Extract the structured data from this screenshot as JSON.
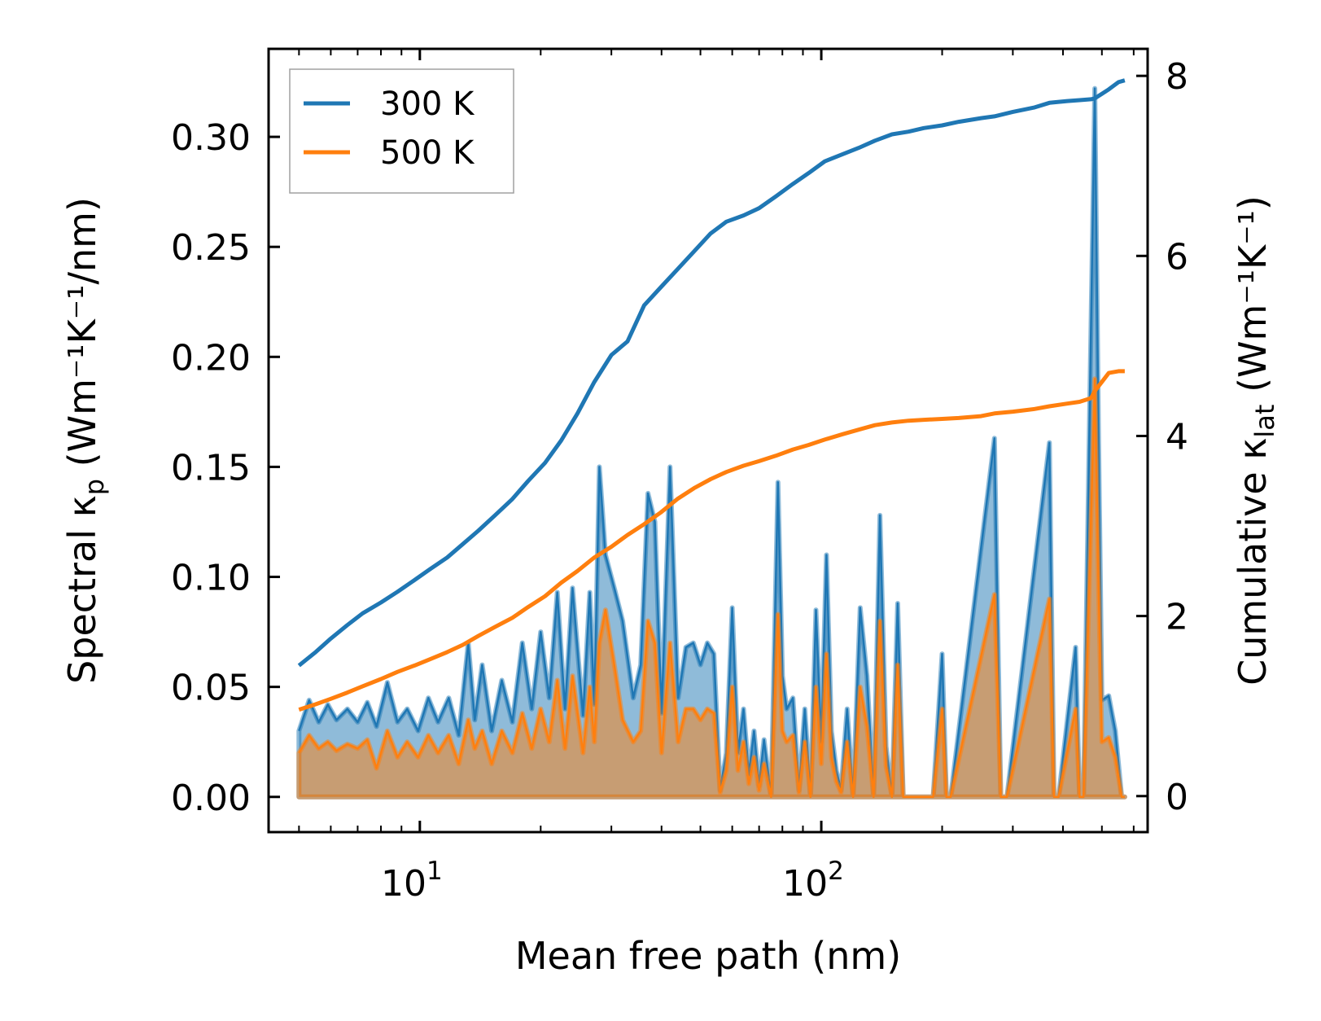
{
  "chart_data": {
    "type": "line",
    "xlabel": "Mean free path (nm)",
    "ylabel_left": "Spectral κ",
    "ylabel_left_sub": "p",
    "ylabel_left_units": " (Wm⁻¹K⁻¹/nm)",
    "ylabel_right": "Cumulative κ",
    "ylabel_right_sub": "lat",
    "ylabel_right_units": " (Wm⁻¹K⁻¹)",
    "xscale": "log",
    "xlim": [
      4.2,
      650
    ],
    "ylim_left": [
      -0.016,
      0.34
    ],
    "ylim_right": [
      -0.4,
      8.3
    ],
    "x_ticks": [
      {
        "base": "10",
        "exp": "1",
        "value": 10
      },
      {
        "base": "10",
        "exp": "2",
        "value": 100
      }
    ],
    "y_left_ticks": [
      "0.00",
      "0.05",
      "0.10",
      "0.15",
      "0.20",
      "0.25",
      "0.30"
    ],
    "y_right_ticks": [
      "0",
      "2",
      "4",
      "6",
      "8"
    ],
    "colors": {
      "s300": "#1f77b4",
      "s500": "#ff7f0e"
    },
    "legend": {
      "placement": "upper-left",
      "entries": [
        "300 K",
        "500 K"
      ]
    },
    "spectral_300K": {
      "x": [
        5,
        5.3,
        5.6,
        5.9,
        6.2,
        6.6,
        7,
        7.4,
        7.8,
        8.3,
        8.8,
        9.3,
        9.9,
        10.5,
        11.1,
        11.8,
        12.5,
        13.2,
        13.7,
        14.3,
        15.1,
        16,
        17,
        18,
        19,
        20,
        21,
        22,
        23,
        24,
        25.5,
        26.5,
        27.2,
        28,
        29,
        30.5,
        32,
        34,
        35.5,
        37,
        38.5,
        40,
        42,
        44,
        46,
        48,
        50,
        52,
        54,
        56,
        58,
        60,
        62,
        64,
        66,
        68,
        70,
        72,
        75,
        78,
        80,
        82,
        85,
        88,
        91,
        94,
        97,
        100,
        103,
        106,
        109,
        112,
        116,
        120,
        125,
        130,
        135,
        140,
        145,
        150,
        155,
        160,
        165,
        170,
        175,
        180,
        190,
        200,
        205,
        210,
        270,
        280,
        290,
        370,
        380,
        390,
        430,
        440,
        450,
        480,
        490,
        500,
        520,
        540,
        560,
        570
      ],
      "y": [
        0.03,
        0.044,
        0.034,
        0.042,
        0.035,
        0.04,
        0.034,
        0.043,
        0.032,
        0.052,
        0.034,
        0.04,
        0.03,
        0.045,
        0.034,
        0.045,
        0.028,
        0.07,
        0.035,
        0.06,
        0.03,
        0.053,
        0.034,
        0.07,
        0.04,
        0.075,
        0.045,
        0.093,
        0.04,
        0.095,
        0.037,
        0.093,
        0.042,
        0.15,
        0.11,
        0.095,
        0.08,
        0.045,
        0.06,
        0.138,
        0.125,
        0.038,
        0.15,
        0.045,
        0.068,
        0.07,
        0.06,
        0.07,
        0.065,
        0.003,
        0.02,
        0.086,
        0.02,
        0.04,
        0.01,
        0.03,
        0.005,
        0.026,
        0.0,
        0.143,
        0.055,
        0.04,
        0.045,
        0.003,
        0.04,
        0.0,
        0.085,
        0.025,
        0.11,
        0.03,
        0.012,
        0.003,
        0.04,
        0.0,
        0.086,
        0.055,
        0.0,
        0.128,
        0.023,
        0.0,
        0.088,
        0.0,
        0.0,
        0.0,
        0.0,
        0.0,
        0.0,
        0.065,
        0.0,
        0.0,
        0.163,
        0.0,
        0.0,
        0.161,
        0.0,
        0.0,
        0.068,
        0.0,
        0.0,
        0.322,
        0.17,
        0.044,
        0.046,
        0.03,
        0.0,
        0.0
      ]
    },
    "spectral_500K": {
      "x": [
        5,
        5.3,
        5.6,
        5.9,
        6.2,
        6.6,
        7,
        7.4,
        7.8,
        8.3,
        8.8,
        9.3,
        9.9,
        10.5,
        11.1,
        11.8,
        12.5,
        13.2,
        13.7,
        14.3,
        15.1,
        16,
        17,
        18,
        19,
        20,
        21,
        22,
        23,
        24,
        25.5,
        26.5,
        27.2,
        28,
        29,
        30.5,
        32,
        34,
        35.5,
        37,
        38.5,
        40,
        42,
        44,
        46,
        48,
        50,
        52,
        54,
        56,
        58,
        60,
        62,
        64,
        66,
        68,
        70,
        72,
        75,
        78,
        80,
        82,
        85,
        88,
        91,
        94,
        97,
        100,
        103,
        106,
        109,
        112,
        116,
        120,
        125,
        130,
        135,
        140,
        145,
        150,
        155,
        160,
        165,
        170,
        175,
        180,
        190,
        200,
        205,
        210,
        270,
        280,
        290,
        370,
        380,
        390,
        430,
        440,
        450,
        480,
        490,
        500,
        520,
        540,
        560,
        570
      ],
      "y": [
        0.02,
        0.028,
        0.022,
        0.025,
        0.021,
        0.024,
        0.022,
        0.026,
        0.013,
        0.03,
        0.018,
        0.025,
        0.018,
        0.028,
        0.02,
        0.028,
        0.015,
        0.035,
        0.022,
        0.03,
        0.015,
        0.03,
        0.02,
        0.038,
        0.022,
        0.04,
        0.025,
        0.053,
        0.022,
        0.055,
        0.02,
        0.05,
        0.025,
        0.07,
        0.085,
        0.06,
        0.035,
        0.025,
        0.03,
        0.08,
        0.07,
        0.02,
        0.07,
        0.025,
        0.04,
        0.04,
        0.035,
        0.04,
        0.038,
        0.002,
        0.012,
        0.05,
        0.012,
        0.025,
        0.006,
        0.018,
        0.003,
        0.015,
        0.0,
        0.083,
        0.03,
        0.025,
        0.028,
        0.002,
        0.025,
        0.0,
        0.05,
        0.015,
        0.065,
        0.018,
        0.007,
        0.002,
        0.025,
        0.0,
        0.05,
        0.032,
        0.0,
        0.08,
        0.014,
        0.0,
        0.06,
        0.0,
        0.0,
        0.0,
        0.0,
        0.0,
        0.0,
        0.04,
        0.0,
        0.0,
        0.092,
        0.0,
        0.0,
        0.09,
        0.0,
        0.0,
        0.04,
        0.0,
        0.0,
        0.19,
        0.1,
        0.025,
        0.027,
        0.018,
        0.0,
        0.0
      ]
    },
    "cumulative_300K": {
      "x": [
        5,
        5.5,
        6,
        6.6,
        7.2,
        8,
        8.8,
        9.7,
        10.6,
        11.7,
        12.8,
        14,
        15.4,
        17,
        18.6,
        20.5,
        22.5,
        24.7,
        27.2,
        30,
        32.9,
        36.2,
        39.8,
        43.8,
        48.2,
        53,
        58,
        64,
        70,
        77,
        85,
        93,
        102,
        113,
        124,
        136,
        150,
        165,
        180,
        200,
        220,
        250,
        270,
        300,
        340,
        370,
        410,
        440,
        470,
        480,
        500,
        520,
        550,
        570
      ],
      "y": [
        1.45,
        1.6,
        1.75,
        1.9,
        2.03,
        2.15,
        2.27,
        2.4,
        2.52,
        2.65,
        2.8,
        2.95,
        3.12,
        3.3,
        3.5,
        3.7,
        3.95,
        4.25,
        4.6,
        4.9,
        5.05,
        5.45,
        5.65,
        5.85,
        6.05,
        6.25,
        6.38,
        6.45,
        6.53,
        6.66,
        6.8,
        6.92,
        7.05,
        7.13,
        7.2,
        7.28,
        7.35,
        7.38,
        7.42,
        7.45,
        7.49,
        7.53,
        7.55,
        7.6,
        7.65,
        7.7,
        7.72,
        7.73,
        7.74,
        7.75,
        7.8,
        7.85,
        7.93,
        7.95
      ]
    },
    "cumulative_500K": {
      "x": [
        5,
        5.5,
        6,
        6.6,
        7.2,
        8,
        8.8,
        9.7,
        10.6,
        11.7,
        12.8,
        14,
        15.4,
        17,
        18.6,
        20.5,
        22.5,
        24.7,
        27.2,
        30,
        32.9,
        36.2,
        39.8,
        43.8,
        48.2,
        53,
        58,
        64,
        70,
        77,
        85,
        93,
        102,
        113,
        124,
        136,
        150,
        165,
        180,
        200,
        220,
        250,
        270,
        300,
        340,
        370,
        410,
        440,
        470,
        480,
        500,
        520,
        550,
        570
      ],
      "y": [
        0.96,
        1.02,
        1.08,
        1.15,
        1.22,
        1.3,
        1.38,
        1.45,
        1.52,
        1.6,
        1.68,
        1.78,
        1.88,
        1.98,
        2.1,
        2.22,
        2.37,
        2.5,
        2.65,
        2.77,
        2.9,
        3.02,
        3.15,
        3.3,
        3.42,
        3.52,
        3.6,
        3.67,
        3.72,
        3.78,
        3.85,
        3.9,
        3.96,
        4.02,
        4.07,
        4.12,
        4.15,
        4.17,
        4.18,
        4.19,
        4.2,
        4.22,
        4.25,
        4.27,
        4.3,
        4.33,
        4.36,
        4.38,
        4.42,
        4.5,
        4.6,
        4.7,
        4.72,
        4.72
      ]
    }
  }
}
